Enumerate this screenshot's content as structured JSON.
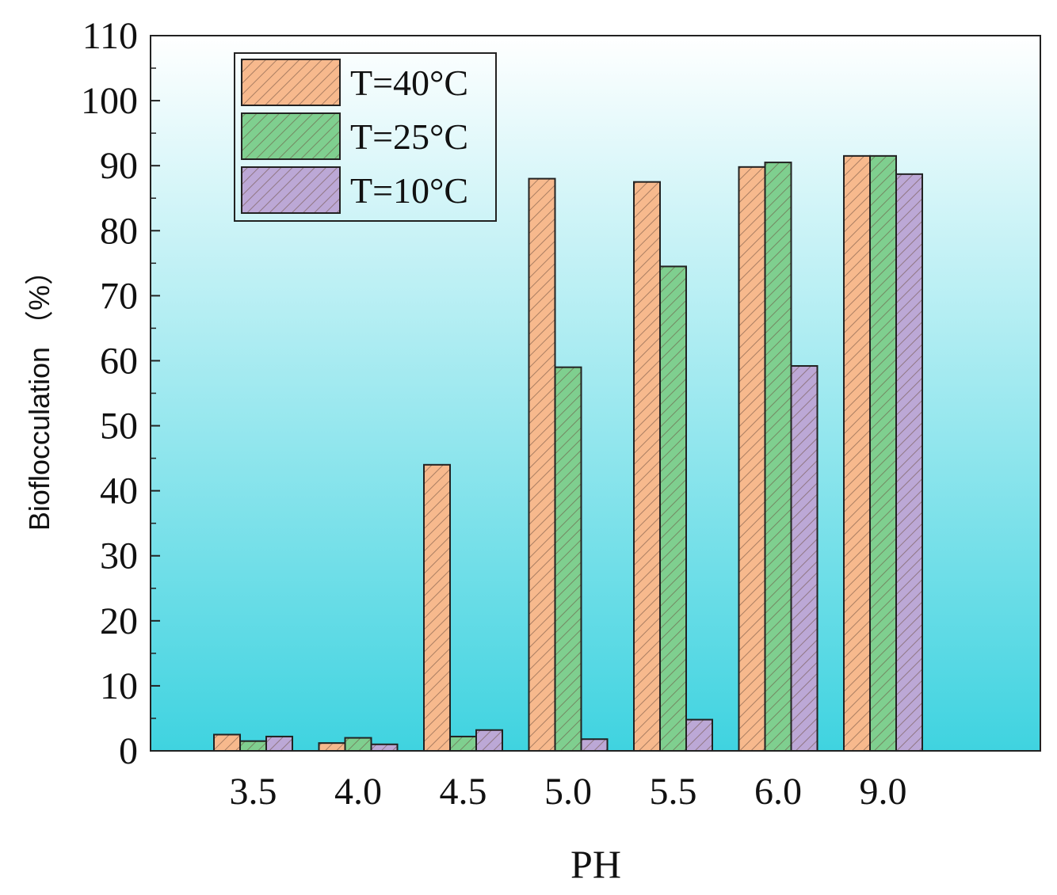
{
  "chart_data": {
    "type": "bar",
    "title": "",
    "xlabel": "PH",
    "ylabel": "Bioflocculation （%）",
    "categories": [
      "3.5",
      "4.0",
      "4.5",
      "5.0",
      "5.5",
      "6.0",
      "9.0"
    ],
    "ylim": [
      0,
      110
    ],
    "yticks": [
      "0",
      "10",
      "20",
      "30",
      "40",
      "50",
      "60",
      "70",
      "80",
      "90",
      "100",
      "110"
    ],
    "grid": false,
    "legend_position": "top-left",
    "bar_pattern": "diagonal-hatch",
    "series": [
      {
        "name": "T=40°C",
        "color": "#F7B98D",
        "values": [
          2.5,
          1.2,
          44.0,
          88.0,
          87.5,
          89.8,
          91.5
        ]
      },
      {
        "name": "T=25°C",
        "color": "#7FCF8F",
        "values": [
          1.5,
          2.0,
          2.2,
          59.0,
          74.5,
          90.5,
          91.5
        ]
      },
      {
        "name": "T=10°C",
        "color": "#BCA8D6",
        "values": [
          2.2,
          1.0,
          3.2,
          1.8,
          4.8,
          59.2,
          88.7
        ]
      }
    ],
    "background_gradient": [
      "#FFFFFF",
      "#3FD3E0"
    ]
  }
}
